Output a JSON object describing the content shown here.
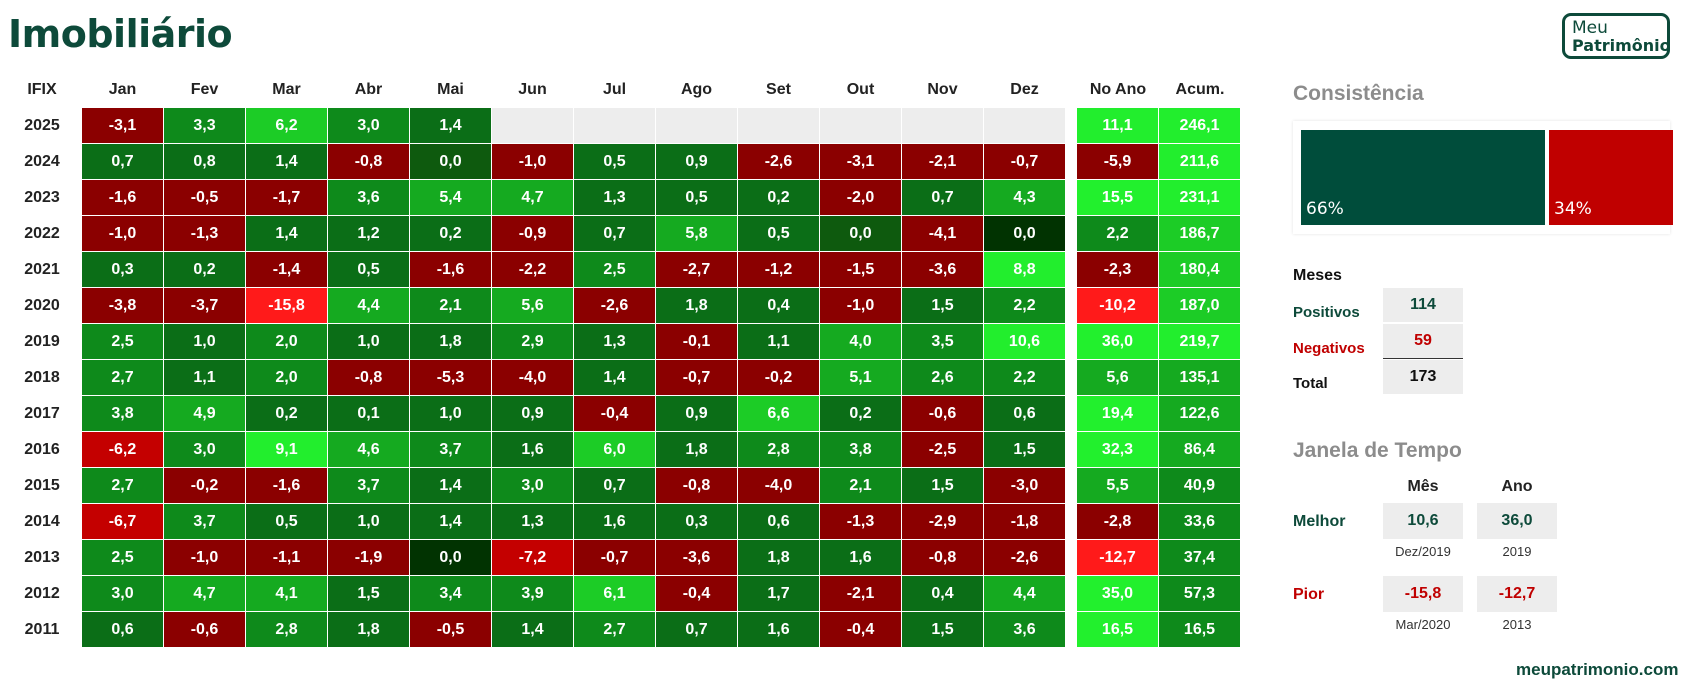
{
  "title": "Imobiliário",
  "logo": {
    "line1": "Meu",
    "line2": "Patrimônio"
  },
  "footer": "meupatrimonio.com",
  "colors": {
    "brand": "#0d4a3a",
    "positive_bar": "#004d3b",
    "negative_bar": "#c00000",
    "empty_cell": "#ededed"
  },
  "chart_data": {
    "type": "table",
    "corner_label": "IFIX",
    "months": [
      "Jan",
      "Fev",
      "Mar",
      "Abr",
      "Mai",
      "Jun",
      "Jul",
      "Ago",
      "Set",
      "Out",
      "Nov",
      "Dez"
    ],
    "summary_headers": [
      "No Ano",
      "Acum."
    ],
    "rows": [
      {
        "year": "2025",
        "months": [
          "-3,1",
          "3,3",
          "6,2",
          "3,0",
          "1,4",
          "",
          "",
          "",
          "",
          "",
          "",
          ""
        ],
        "no_ano": "11,1",
        "acum": "246,1"
      },
      {
        "year": "2024",
        "months": [
          "0,7",
          "0,8",
          "1,4",
          "-0,8",
          "0,0",
          "-1,0",
          "0,5",
          "0,9",
          "-2,6",
          "-3,1",
          "-2,1",
          "-0,7"
        ],
        "no_ano": "-5,9",
        "acum": "211,6"
      },
      {
        "year": "2023",
        "months": [
          "-1,6",
          "-0,5",
          "-1,7",
          "3,6",
          "5,4",
          "4,7",
          "1,3",
          "0,5",
          "0,2",
          "-2,0",
          "0,7",
          "4,3"
        ],
        "no_ano": "15,5",
        "acum": "231,1"
      },
      {
        "year": "2022",
        "months": [
          "-1,0",
          "-1,3",
          "1,4",
          "1,2",
          "0,2",
          "-0,9",
          "0,7",
          "5,8",
          "0,5",
          "0,0",
          "-4,1",
          "0,0"
        ],
        "no_ano": "2,2",
        "acum": "186,7"
      },
      {
        "year": "2021",
        "months": [
          "0,3",
          "0,2",
          "-1,4",
          "0,5",
          "-1,6",
          "-2,2",
          "2,5",
          "-2,7",
          "-1,2",
          "-1,5",
          "-3,6",
          "8,8"
        ],
        "no_ano": "-2,3",
        "acum": "180,4"
      },
      {
        "year": "2020",
        "months": [
          "-3,8",
          "-3,7",
          "-15,8",
          "4,4",
          "2,1",
          "5,6",
          "-2,6",
          "1,8",
          "0,4",
          "-1,0",
          "1,5",
          "2,2"
        ],
        "no_ano": "-10,2",
        "acum": "187,0"
      },
      {
        "year": "2019",
        "months": [
          "2,5",
          "1,0",
          "2,0",
          "1,0",
          "1,8",
          "2,9",
          "1,3",
          "-0,1",
          "1,1",
          "4,0",
          "3,5",
          "10,6"
        ],
        "no_ano": "36,0",
        "acum": "219,7"
      },
      {
        "year": "2018",
        "months": [
          "2,7",
          "1,1",
          "2,0",
          "-0,8",
          "-5,3",
          "-4,0",
          "1,4",
          "-0,7",
          "-0,2",
          "5,1",
          "2,6",
          "2,2"
        ],
        "no_ano": "5,6",
        "acum": "135,1"
      },
      {
        "year": "2017",
        "months": [
          "3,8",
          "4,9",
          "0,2",
          "0,1",
          "1,0",
          "0,9",
          "-0,4",
          "0,9",
          "6,6",
          "0,2",
          "-0,6",
          "0,6"
        ],
        "no_ano": "19,4",
        "acum": "122,6"
      },
      {
        "year": "2016",
        "months": [
          "-6,2",
          "3,0",
          "9,1",
          "4,6",
          "3,7",
          "1,6",
          "6,0",
          "1,8",
          "2,8",
          "3,8",
          "-2,5",
          "1,5"
        ],
        "no_ano": "32,3",
        "acum": "86,4"
      },
      {
        "year": "2015",
        "months": [
          "2,7",
          "-0,2",
          "-1,6",
          "3,7",
          "1,4",
          "3,0",
          "0,7",
          "-0,8",
          "-4,0",
          "2,1",
          "1,5",
          "-3,0"
        ],
        "no_ano": "5,5",
        "acum": "40,9"
      },
      {
        "year": "2014",
        "months": [
          "-6,7",
          "3,7",
          "0,5",
          "1,0",
          "1,4",
          "1,3",
          "1,6",
          "0,3",
          "0,6",
          "-1,3",
          "-2,9",
          "-1,8"
        ],
        "no_ano": "-2,8",
        "acum": "33,6"
      },
      {
        "year": "2013",
        "months": [
          "2,5",
          "-1,0",
          "-1,1",
          "-1,9",
          "0,0",
          "-7,2",
          "-0,7",
          "-3,6",
          "1,8",
          "1,6",
          "-0,8",
          "-2,6"
        ],
        "no_ano": "-12,7",
        "acum": "37,4"
      },
      {
        "year": "2012",
        "months": [
          "3,0",
          "4,7",
          "4,1",
          "1,5",
          "3,4",
          "3,9",
          "6,1",
          "-0,4",
          "1,7",
          "-2,1",
          "0,4",
          "4,4"
        ],
        "no_ano": "35,0",
        "acum": "57,3"
      },
      {
        "year": "2011",
        "months": [
          "0,6",
          "-0,6",
          "2,8",
          "1,8",
          "-0,5",
          "1,4",
          "2,7",
          "0,7",
          "1,6",
          "-0,4",
          "1,5",
          "3,6"
        ],
        "no_ano": "16,5",
        "acum": "16,5"
      }
    ]
  },
  "consistencia": {
    "heading": "Consistência",
    "positive_share": 66,
    "negative_share": 34,
    "positive_label": "66%",
    "negative_label": "34%"
  },
  "meses": {
    "heading": "Meses",
    "positivos_label": "Positivos",
    "positivos_value": "114",
    "negativos_label": "Negativos",
    "negativos_value": "59",
    "total_label": "Total",
    "total_value": "173"
  },
  "janela": {
    "heading": "Janela de Tempo",
    "col_mes": "Mês",
    "col_ano": "Ano",
    "melhor_label": "Melhor",
    "melhor_mes": "10,6",
    "melhor_mes_date": "Dez/2019",
    "melhor_ano": "36,0",
    "melhor_ano_date": "2019",
    "pior_label": "Pior",
    "pior_mes": "-15,8",
    "pior_mes_date": "Mar/2020",
    "pior_ano": "-12,7",
    "pior_ano_date": "2013"
  }
}
